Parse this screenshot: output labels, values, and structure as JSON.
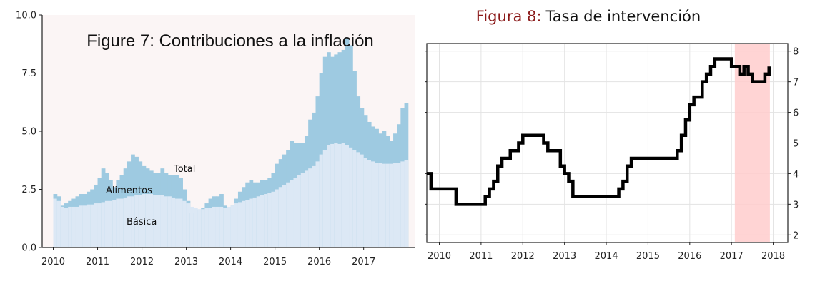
{
  "chart_data": [
    {
      "type": "area",
      "title": "Figure 7: Contribuciones a la inflación",
      "ylim": [
        0,
        10
      ],
      "yticks": [
        "0.0",
        "2.5",
        "5.0",
        "7.5",
        "10.0"
      ],
      "xlim": [
        2009.75,
        2018.15
      ],
      "xticks": [
        "2010",
        "2011",
        "2012",
        "2013",
        "2014",
        "2015",
        "2016",
        "2017"
      ],
      "grid": false,
      "annotations": [
        "Total",
        "Alimentos",
        "Básica"
      ],
      "colors": {
        "basica": "#dce8f5",
        "alimentos": "#9ecae1",
        "background": "#fbf5f5"
      },
      "x": [
        2010.0,
        2010.083,
        2010.167,
        2010.25,
        2010.333,
        2010.417,
        2010.5,
        2010.583,
        2010.667,
        2010.75,
        2010.833,
        2010.917,
        2011.0,
        2011.083,
        2011.167,
        2011.25,
        2011.333,
        2011.417,
        2011.5,
        2011.583,
        2011.667,
        2011.75,
        2011.833,
        2011.917,
        2012.0,
        2012.083,
        2012.167,
        2012.25,
        2012.333,
        2012.417,
        2012.5,
        2012.583,
        2012.667,
        2012.75,
        2012.833,
        2012.917,
        2013.0,
        2013.083,
        2013.167,
        2013.25,
        2013.333,
        2013.417,
        2013.5,
        2013.583,
        2013.667,
        2013.75,
        2013.833,
        2013.917,
        2014.0,
        2014.083,
        2014.167,
        2014.25,
        2014.333,
        2014.417,
        2014.5,
        2014.583,
        2014.667,
        2014.75,
        2014.833,
        2014.917,
        2015.0,
        2015.083,
        2015.167,
        2015.25,
        2015.333,
        2015.417,
        2015.5,
        2015.583,
        2015.667,
        2015.75,
        2015.833,
        2015.917,
        2016.0,
        2016.083,
        2016.167,
        2016.25,
        2016.333,
        2016.417,
        2016.5,
        2016.583,
        2016.667,
        2016.75,
        2016.833,
        2016.917,
        2017.0,
        2017.083,
        2017.167,
        2017.25,
        2017.333,
        2017.417,
        2017.5,
        2017.583,
        2017.667,
        2017.75,
        2017.833,
        2017.917
      ],
      "series": [
        {
          "name": "Básica",
          "values": [
            2.1,
            2.0,
            1.75,
            1.7,
            1.75,
            1.75,
            1.75,
            1.8,
            1.8,
            1.85,
            1.85,
            1.9,
            1.9,
            1.95,
            2.0,
            2.0,
            2.05,
            2.1,
            2.1,
            2.15,
            2.2,
            2.2,
            2.25,
            2.25,
            2.3,
            2.3,
            2.3,
            2.25,
            2.25,
            2.25,
            2.2,
            2.2,
            2.15,
            2.1,
            2.1,
            2.0,
            1.9,
            1.75,
            1.7,
            1.65,
            1.65,
            1.7,
            1.7,
            1.75,
            1.75,
            1.75,
            1.7,
            1.75,
            1.8,
            1.9,
            1.95,
            2.0,
            2.05,
            2.1,
            2.15,
            2.2,
            2.25,
            2.3,
            2.35,
            2.4,
            2.5,
            2.6,
            2.7,
            2.8,
            2.9,
            3.0,
            3.1,
            3.2,
            3.3,
            3.4,
            3.5,
            3.7,
            4.0,
            4.2,
            4.4,
            4.45,
            4.5,
            4.45,
            4.5,
            4.4,
            4.3,
            4.2,
            4.1,
            4.0,
            3.85,
            3.75,
            3.7,
            3.65,
            3.65,
            3.6,
            3.6,
            3.6,
            3.65,
            3.65,
            3.7,
            3.75
          ]
        },
        {
          "name": "Total",
          "values": [
            2.3,
            2.2,
            1.8,
            1.9,
            2.0,
            2.1,
            2.2,
            2.3,
            2.3,
            2.4,
            2.5,
            2.7,
            3.0,
            3.4,
            3.2,
            2.9,
            2.6,
            2.9,
            3.1,
            3.4,
            3.7,
            4.0,
            3.9,
            3.7,
            3.5,
            3.4,
            3.3,
            3.2,
            3.2,
            3.4,
            3.2,
            3.1,
            3.1,
            3.1,
            3.0,
            2.5,
            2.0,
            1.5,
            1.5,
            1.6,
            1.7,
            1.9,
            2.1,
            2.2,
            2.2,
            2.3,
            1.8,
            1.6,
            1.8,
            2.1,
            2.4,
            2.6,
            2.8,
            2.9,
            2.8,
            2.8,
            2.9,
            2.9,
            3.0,
            3.2,
            3.6,
            3.8,
            4.0,
            4.2,
            4.6,
            4.5,
            4.5,
            4.5,
            4.8,
            5.5,
            5.8,
            6.5,
            7.5,
            8.2,
            8.4,
            8.2,
            8.3,
            8.4,
            8.5,
            9.0,
            8.7,
            7.6,
            6.5,
            6.0,
            5.7,
            5.4,
            5.2,
            5.1,
            4.9,
            5.0,
            4.8,
            4.6,
            4.9,
            5.3,
            6.0,
            6.2
          ]
        }
      ]
    },
    {
      "type": "line",
      "title_prefix": "Figura 8:",
      "title": "Tasa de intervención",
      "ylim": [
        1.75,
        8.25
      ],
      "yticks": [
        "2",
        "3",
        "4",
        "5",
        "6",
        "7",
        "8"
      ],
      "xlim": [
        2009.7,
        2018.35
      ],
      "xticks": [
        "2010",
        "2011",
        "2012",
        "2013",
        "2014",
        "2015",
        "2016",
        "2017",
        "2018"
      ],
      "grid": true,
      "shaded_region": [
        2017.08,
        2017.92
      ],
      "colors": {
        "line": "#000000",
        "shade": "#ffcccc",
        "title_prefix": "#8b1a1a"
      },
      "x": [
        2009.7,
        2009.8,
        2010.4,
        2011.1,
        2011.2,
        2011.3,
        2011.4,
        2011.5,
        2011.7,
        2011.9,
        2012.0,
        2012.1,
        2012.5,
        2012.6,
        2012.9,
        2013.0,
        2013.1,
        2013.2,
        2014.3,
        2014.4,
        2014.5,
        2014.6,
        2015.6,
        2015.7,
        2015.8,
        2015.9,
        2016.0,
        2016.1,
        2016.2,
        2016.3,
        2016.4,
        2016.5,
        2016.6,
        2017.0,
        2017.1,
        2017.2,
        2017.3,
        2017.35,
        2017.4,
        2017.5,
        2017.6,
        2017.7,
        2017.8,
        2017.85,
        2017.9
      ],
      "values": [
        4.0,
        3.5,
        3.0,
        3.25,
        3.5,
        3.75,
        4.25,
        4.5,
        4.75,
        5.0,
        5.25,
        5.25,
        5.0,
        4.75,
        4.25,
        4.0,
        3.75,
        3.25,
        3.5,
        3.75,
        4.25,
        4.5,
        4.5,
        4.75,
        5.25,
        5.75,
        6.25,
        6.5,
        6.5,
        7.0,
        7.25,
        7.5,
        7.75,
        7.5,
        7.5,
        7.25,
        7.5,
        7.5,
        7.25,
        7.0,
        7.0,
        7.0,
        7.25,
        7.25,
        7.5
      ]
    }
  ]
}
